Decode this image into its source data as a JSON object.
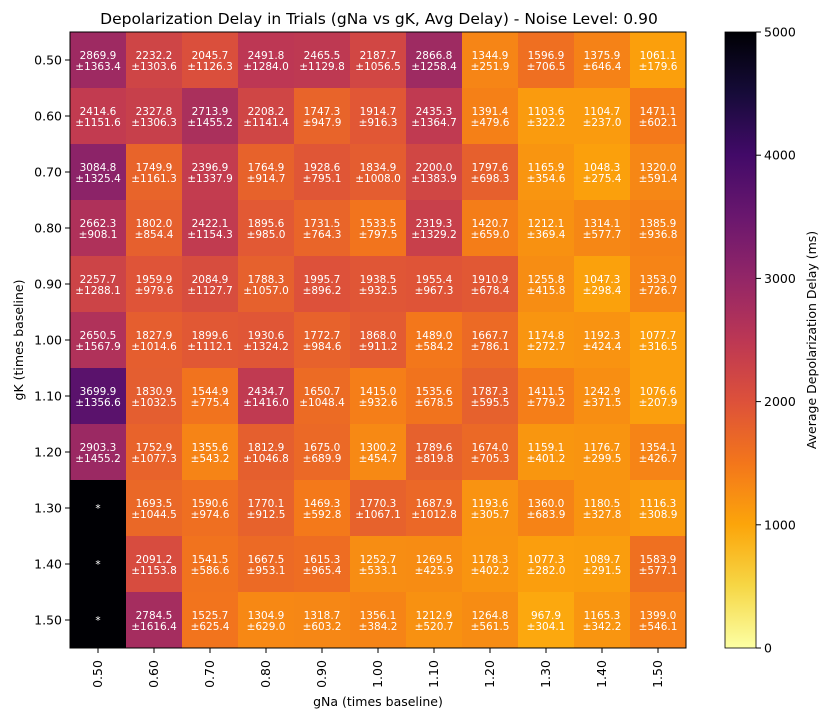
{
  "chart_data": {
    "type": "heatmap",
    "title": "Depolarization Delay in Trials (gNa vs gK, Avg Delay) - Noise Level: 0.90",
    "xlabel": "gNa (times baseline)",
    "ylabel": "gK (times baseline)",
    "x_categories": [
      "0.50",
      "0.60",
      "0.70",
      "0.80",
      "0.90",
      "1.00",
      "1.10",
      "1.20",
      "1.30",
      "1.40",
      "1.50"
    ],
    "y_categories": [
      "0.50",
      "0.60",
      "0.70",
      "0.80",
      "0.90",
      "1.00",
      "1.10",
      "1.20",
      "1.30",
      "1.40",
      "1.50"
    ],
    "colorbar": {
      "label": "Average Depolarization Delay (ms)",
      "min": 0,
      "max": 5000,
      "ticks": [
        "0",
        "1000",
        "2000",
        "3000",
        "4000",
        "5000"
      ],
      "colormap": "inferno_r"
    },
    "missing_value": 5000,
    "missing_label": "*",
    "values": [
      [
        2869.9,
        2232.2,
        2045.7,
        2491.8,
        2465.5,
        2187.7,
        2866.8,
        1344.9,
        1596.9,
        1375.9,
        1061.1
      ],
      [
        2414.6,
        2327.8,
        2713.9,
        2208.2,
        1747.3,
        1914.7,
        2435.3,
        1391.4,
        1103.6,
        1104.7,
        1471.1
      ],
      [
        3084.8,
        1749.9,
        2396.9,
        1764.9,
        1928.6,
        1834.9,
        2200.0,
        1797.6,
        1165.9,
        1048.3,
        1320.0
      ],
      [
        2662.3,
        1802.0,
        2422.1,
        1895.6,
        1731.5,
        1533.5,
        2319.3,
        1420.7,
        1212.1,
        1314.1,
        1385.9
      ],
      [
        2257.7,
        1959.9,
        2084.9,
        1788.3,
        1995.7,
        1938.5,
        1955.4,
        1910.9,
        1255.8,
        1047.3,
        1353.0
      ],
      [
        2650.5,
        1827.9,
        1899.6,
        1930.6,
        1772.7,
        1868.0,
        1489.0,
        1667.7,
        1174.8,
        1192.3,
        1077.7
      ],
      [
        3699.9,
        1830.9,
        1544.9,
        2434.7,
        1650.7,
        1415.0,
        1535.6,
        1787.3,
        1411.5,
        1242.9,
        1076.6
      ],
      [
        2903.3,
        1752.9,
        1355.6,
        1812.9,
        1675.0,
        1300.2,
        1789.6,
        1674.0,
        1159.1,
        1176.7,
        1354.1
      ],
      [
        null,
        1693.5,
        1590.6,
        1770.1,
        1469.3,
        1770.3,
        1687.9,
        1193.6,
        1360.0,
        1180.5,
        1116.3
      ],
      [
        null,
        2091.2,
        1541.5,
        1667.5,
        1615.3,
        1252.7,
        1269.5,
        1178.3,
        1077.3,
        1089.7,
        1583.9
      ],
      [
        null,
        2784.5,
        1525.7,
        1304.9,
        1318.7,
        1356.1,
        1212.9,
        1264.8,
        967.9,
        1165.3,
        1399.0
      ]
    ],
    "errors": [
      [
        1363.4,
        1303.6,
        1126.3,
        1284.0,
        1129.8,
        1056.5,
        1258.4,
        251.9,
        706.5,
        646.4,
        179.6
      ],
      [
        1151.6,
        1306.3,
        1455.2,
        1141.4,
        947.9,
        916.3,
        1364.7,
        479.6,
        322.2,
        237.0,
        602.1
      ],
      [
        1325.4,
        1161.3,
        1337.9,
        914.7,
        795.1,
        1008.0,
        1383.9,
        698.3,
        354.6,
        275.4,
        591.4
      ],
      [
        908.1,
        854.4,
        1154.3,
        985.0,
        764.3,
        797.5,
        1329.2,
        659.0,
        369.4,
        577.7,
        936.8
      ],
      [
        1288.1,
        979.6,
        1127.7,
        1057.0,
        896.2,
        932.5,
        967.3,
        678.4,
        415.8,
        298.4,
        726.7
      ],
      [
        1567.9,
        1014.6,
        1112.1,
        1324.2,
        984.6,
        911.2,
        584.2,
        786.1,
        272.7,
        424.4,
        316.5
      ],
      [
        1356.6,
        1032.5,
        775.4,
        1416.0,
        1048.4,
        932.6,
        678.5,
        595.5,
        779.2,
        371.5,
        207.9
      ],
      [
        1455.2,
        1077.3,
        543.2,
        1046.8,
        689.9,
        454.7,
        819.8,
        705.3,
        401.2,
        299.5,
        426.7
      ],
      [
        null,
        1044.5,
        974.6,
        912.5,
        592.8,
        1067.1,
        1012.8,
        305.7,
        683.9,
        327.8,
        308.9
      ],
      [
        null,
        1153.8,
        586.6,
        953.1,
        965.4,
        533.1,
        425.9,
        402.2,
        282.0,
        291.5,
        577.1
      ],
      [
        null,
        1616.4,
        625.4,
        629.0,
        603.2,
        384.2,
        520.7,
        561.5,
        304.1,
        342.2,
        546.1
      ]
    ]
  }
}
